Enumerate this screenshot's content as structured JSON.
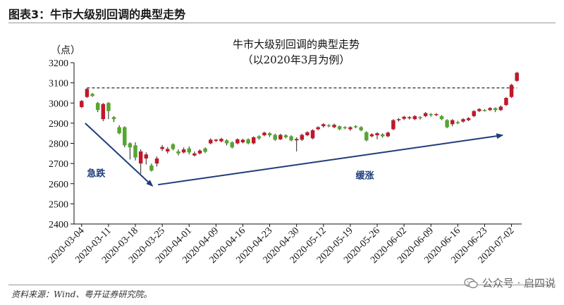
{
  "header": {
    "figure_title": "图表3：牛市大级别回调的典型走势"
  },
  "footer": {
    "source": "资料来源：Wind、粤开证券研究院。",
    "watermark": "公众号 · 启四说"
  },
  "colors": {
    "up": "#c0182a",
    "down": "#55a630",
    "arrow": "#1f3d7a",
    "annotation": "#1f3d7a"
  },
  "chart_data": {
    "type": "candlestick",
    "title": "牛市大级别回调的典型走势",
    "subtitle": "（以2020年3月为例）",
    "ylabel": "（点）",
    "ylim": [
      2400,
      3200
    ],
    "yticks": [
      2400,
      2500,
      2600,
      2700,
      2800,
      2900,
      3000,
      3100,
      3200
    ],
    "x_tick_labels": [
      "2020-03-04",
      "2020-03-11",
      "2020-03-18",
      "2020-03-25",
      "2020-04-01",
      "2020-04-09",
      "2020-04-16",
      "2020-04-23",
      "2020-04-30",
      "2020-05-12",
      "2020-05-19",
      "2020-05-26",
      "2020-06-02",
      "2020-06-09",
      "2020-06-16",
      "2020-06-23",
      "2020-07-02"
    ],
    "x_tick_index": [
      0,
      5,
      10,
      15,
      20,
      25,
      30,
      35,
      40,
      45,
      50,
      55,
      60,
      65,
      70,
      75,
      80
    ],
    "reference_level": 3075,
    "grid": false,
    "annotations": [
      {
        "text": "急跌",
        "x_index": 1,
        "y": 2635
      },
      {
        "text": "缓涨",
        "x_index": 51,
        "y": 2625
      }
    ],
    "candles": [
      {
        "o": 2980,
        "c": 3010,
        "h": 3015,
        "l": 2975
      },
      {
        "o": 3030,
        "c": 3070,
        "h": 3075,
        "l": 3025
      },
      {
        "o": 3045,
        "c": 3035,
        "h": 3050,
        "l": 3030
      },
      {
        "o": 3000,
        "c": 2965,
        "h": 3005,
        "l": 2955
      },
      {
        "o": 2920,
        "c": 2995,
        "h": 3000,
        "l": 2910
      },
      {
        "o": 3000,
        "c": 2960,
        "h": 3005,
        "l": 2920
      },
      {
        "o": 2930,
        "c": 2920,
        "h": 2935,
        "l": 2905
      },
      {
        "o": 2880,
        "c": 2850,
        "h": 2890,
        "l": 2845
      },
      {
        "o": 2880,
        "c": 2790,
        "h": 2885,
        "l": 2780
      },
      {
        "o": 2800,
        "c": 2780,
        "h": 2805,
        "l": 2720
      },
      {
        "o": 2790,
        "c": 2730,
        "h": 2805,
        "l": 2715
      },
      {
        "o": 2700,
        "c": 2760,
        "h": 2770,
        "l": 2650
      },
      {
        "o": 2725,
        "c": 2745,
        "h": 2755,
        "l": 2695
      },
      {
        "o": 2690,
        "c": 2665,
        "h": 2700,
        "l": 2660
      },
      {
        "o": 2700,
        "c": 2725,
        "h": 2735,
        "l": 2685
      },
      {
        "o": 2772,
        "c": 2782,
        "h": 2792,
        "l": 2762
      },
      {
        "o": 2760,
        "c": 2772,
        "h": 2782,
        "l": 2750
      },
      {
        "o": 2795,
        "c": 2772,
        "h": 2800,
        "l": 2765
      },
      {
        "o": 2760,
        "c": 2750,
        "h": 2770,
        "l": 2740
      },
      {
        "o": 2755,
        "c": 2770,
        "h": 2780,
        "l": 2750
      },
      {
        "o": 2775,
        "c": 2755,
        "h": 2785,
        "l": 2745
      },
      {
        "o": 2740,
        "c": 2750,
        "h": 2760,
        "l": 2735
      },
      {
        "o": 2750,
        "c": 2764,
        "h": 2770,
        "l": 2745
      },
      {
        "o": 2775,
        "c": 2758,
        "h": 2780,
        "l": 2752
      },
      {
        "o": 2800,
        "c": 2818,
        "h": 2825,
        "l": 2795
      },
      {
        "o": 2812,
        "c": 2818,
        "h": 2822,
        "l": 2806
      },
      {
        "o": 2810,
        "c": 2822,
        "h": 2828,
        "l": 2805
      },
      {
        "o": 2815,
        "c": 2800,
        "h": 2820,
        "l": 2790
      },
      {
        "o": 2805,
        "c": 2780,
        "h": 2810,
        "l": 2775
      },
      {
        "o": 2800,
        "c": 2820,
        "h": 2825,
        "l": 2795
      },
      {
        "o": 2805,
        "c": 2818,
        "h": 2822,
        "l": 2800
      },
      {
        "o": 2820,
        "c": 2800,
        "h": 2825,
        "l": 2795
      },
      {
        "o": 2800,
        "c": 2830,
        "h": 2835,
        "l": 2795
      },
      {
        "o": 2835,
        "c": 2825,
        "h": 2840,
        "l": 2818
      },
      {
        "o": 2840,
        "c": 2853,
        "h": 2858,
        "l": 2835
      },
      {
        "o": 2850,
        "c": 2840,
        "h": 2855,
        "l": 2832
      },
      {
        "o": 2842,
        "c": 2818,
        "h": 2848,
        "l": 2812
      },
      {
        "o": 2820,
        "c": 2842,
        "h": 2848,
        "l": 2816
      },
      {
        "o": 2840,
        "c": 2830,
        "h": 2845,
        "l": 2825
      },
      {
        "o": 2835,
        "c": 2815,
        "h": 2840,
        "l": 2810
      },
      {
        "o": 2815,
        "c": 2822,
        "h": 2830,
        "l": 2760
      },
      {
        "o": 2818,
        "c": 2842,
        "h": 2848,
        "l": 2812
      },
      {
        "o": 2840,
        "c": 2855,
        "h": 2860,
        "l": 2835
      },
      {
        "o": 2825,
        "c": 2865,
        "h": 2870,
        "l": 2820
      },
      {
        "o": 2870,
        "c": 2880,
        "h": 2885,
        "l": 2865
      },
      {
        "o": 2885,
        "c": 2895,
        "h": 2900,
        "l": 2878
      },
      {
        "o": 2890,
        "c": 2885,
        "h": 2895,
        "l": 2880
      },
      {
        "o": 2880,
        "c": 2892,
        "h": 2898,
        "l": 2875
      },
      {
        "o": 2885,
        "c": 2870,
        "h": 2888,
        "l": 2865
      },
      {
        "o": 2880,
        "c": 2875,
        "h": 2885,
        "l": 2870
      },
      {
        "o": 2870,
        "c": 2880,
        "h": 2885,
        "l": 2862
      },
      {
        "o": 2885,
        "c": 2880,
        "h": 2890,
        "l": 2875
      },
      {
        "o": 2880,
        "c": 2865,
        "h": 2885,
        "l": 2860
      },
      {
        "o": 2855,
        "c": 2815,
        "h": 2860,
        "l": 2810
      },
      {
        "o": 2835,
        "c": 2845,
        "h": 2850,
        "l": 2830
      },
      {
        "o": 2840,
        "c": 2850,
        "h": 2855,
        "l": 2820
      },
      {
        "o": 2845,
        "c": 2835,
        "h": 2850,
        "l": 2828
      },
      {
        "o": 2835,
        "c": 2853,
        "h": 2858,
        "l": 2830
      },
      {
        "o": 2870,
        "c": 2915,
        "h": 2920,
        "l": 2865
      },
      {
        "o": 2915,
        "c": 2920,
        "h": 2925,
        "l": 2908
      },
      {
        "o": 2922,
        "c": 2932,
        "h": 2936,
        "l": 2915
      },
      {
        "o": 2925,
        "c": 2930,
        "h": 2935,
        "l": 2918
      },
      {
        "o": 2920,
        "c": 2935,
        "h": 2940,
        "l": 2915
      },
      {
        "o": 2930,
        "c": 2925,
        "h": 2935,
        "l": 2918
      },
      {
        "o": 2935,
        "c": 2950,
        "h": 2955,
        "l": 2930
      },
      {
        "o": 2945,
        "c": 2940,
        "h": 2950,
        "l": 2932
      },
      {
        "o": 2940,
        "c": 2945,
        "h": 2950,
        "l": 2935
      },
      {
        "o": 2935,
        "c": 2920,
        "h": 2940,
        "l": 2915
      },
      {
        "o": 2915,
        "c": 2880,
        "h": 2920,
        "l": 2875
      },
      {
        "o": 2895,
        "c": 2915,
        "h": 2920,
        "l": 2885
      },
      {
        "o": 2905,
        "c": 2900,
        "h": 2912,
        "l": 2895
      },
      {
        "o": 2908,
        "c": 2920,
        "h": 2925,
        "l": 2902
      },
      {
        "o": 2915,
        "c": 2925,
        "h": 2930,
        "l": 2910
      },
      {
        "o": 2935,
        "c": 2960,
        "h": 2965,
        "l": 2930
      },
      {
        "o": 2960,
        "c": 2970,
        "h": 2975,
        "l": 2955
      },
      {
        "o": 2965,
        "c": 2962,
        "h": 2970,
        "l": 2958
      },
      {
        "o": 2965,
        "c": 2975,
        "h": 2980,
        "l": 2960
      },
      {
        "o": 2975,
        "c": 2965,
        "h": 2978,
        "l": 2955
      },
      {
        "o": 2965,
        "c": 2982,
        "h": 2988,
        "l": 2960
      },
      {
        "o": 2990,
        "c": 3025,
        "h": 3030,
        "l": 2985
      },
      {
        "o": 3030,
        "c": 3090,
        "h": 3095,
        "l": 3025
      },
      {
        "o": 3110,
        "c": 3150,
        "h": 3155,
        "l": 3105
      }
    ]
  }
}
